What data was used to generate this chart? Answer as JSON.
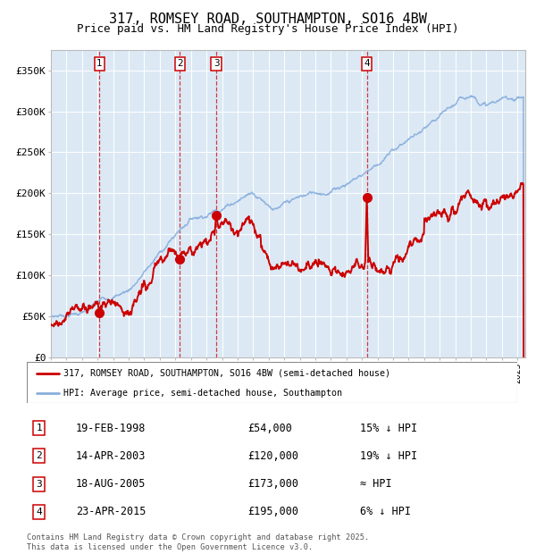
{
  "title": "317, ROMSEY ROAD, SOUTHAMPTON, SO16 4BW",
  "subtitle": "Price paid vs. HM Land Registry's House Price Index (HPI)",
  "background_color": "#ffffff",
  "plot_bg_color": "#dce9f5",
  "grid_color": "#ffffff",
  "ylabel_ticks": [
    "£0",
    "£50K",
    "£100K",
    "£150K",
    "£200K",
    "£250K",
    "£300K",
    "£350K"
  ],
  "ylim": [
    0,
    375000
  ],
  "xlim_start": 1995.0,
  "xlim_end": 2025.5,
  "sale_dates": [
    1998.12,
    2003.29,
    2005.63,
    2015.31
  ],
  "sale_prices": [
    54000,
    120000,
    173000,
    195000
  ],
  "sale_labels": [
    "1",
    "2",
    "3",
    "4"
  ],
  "vline_color": "#cc0000",
  "sale_marker_color": "#cc0000",
  "hpi_line_color": "#88aedd",
  "price_line_color": "#cc0000",
  "legend_entries": [
    "317, ROMSEY ROAD, SOUTHAMPTON, SO16 4BW (semi-detached house)",
    "HPI: Average price, semi-detached house, Southampton"
  ],
  "table_data": [
    [
      "1",
      "19-FEB-1998",
      "£54,000",
      "15% ↓ HPI"
    ],
    [
      "2",
      "14-APR-2003",
      "£120,000",
      "19% ↓ HPI"
    ],
    [
      "3",
      "18-AUG-2005",
      "£173,000",
      "≈ HPI"
    ],
    [
      "4",
      "23-APR-2015",
      "£195,000",
      "6% ↓ HPI"
    ]
  ],
  "footer": "Contains HM Land Registry data © Crown copyright and database right 2025.\nThis data is licensed under the Open Government Licence v3.0."
}
